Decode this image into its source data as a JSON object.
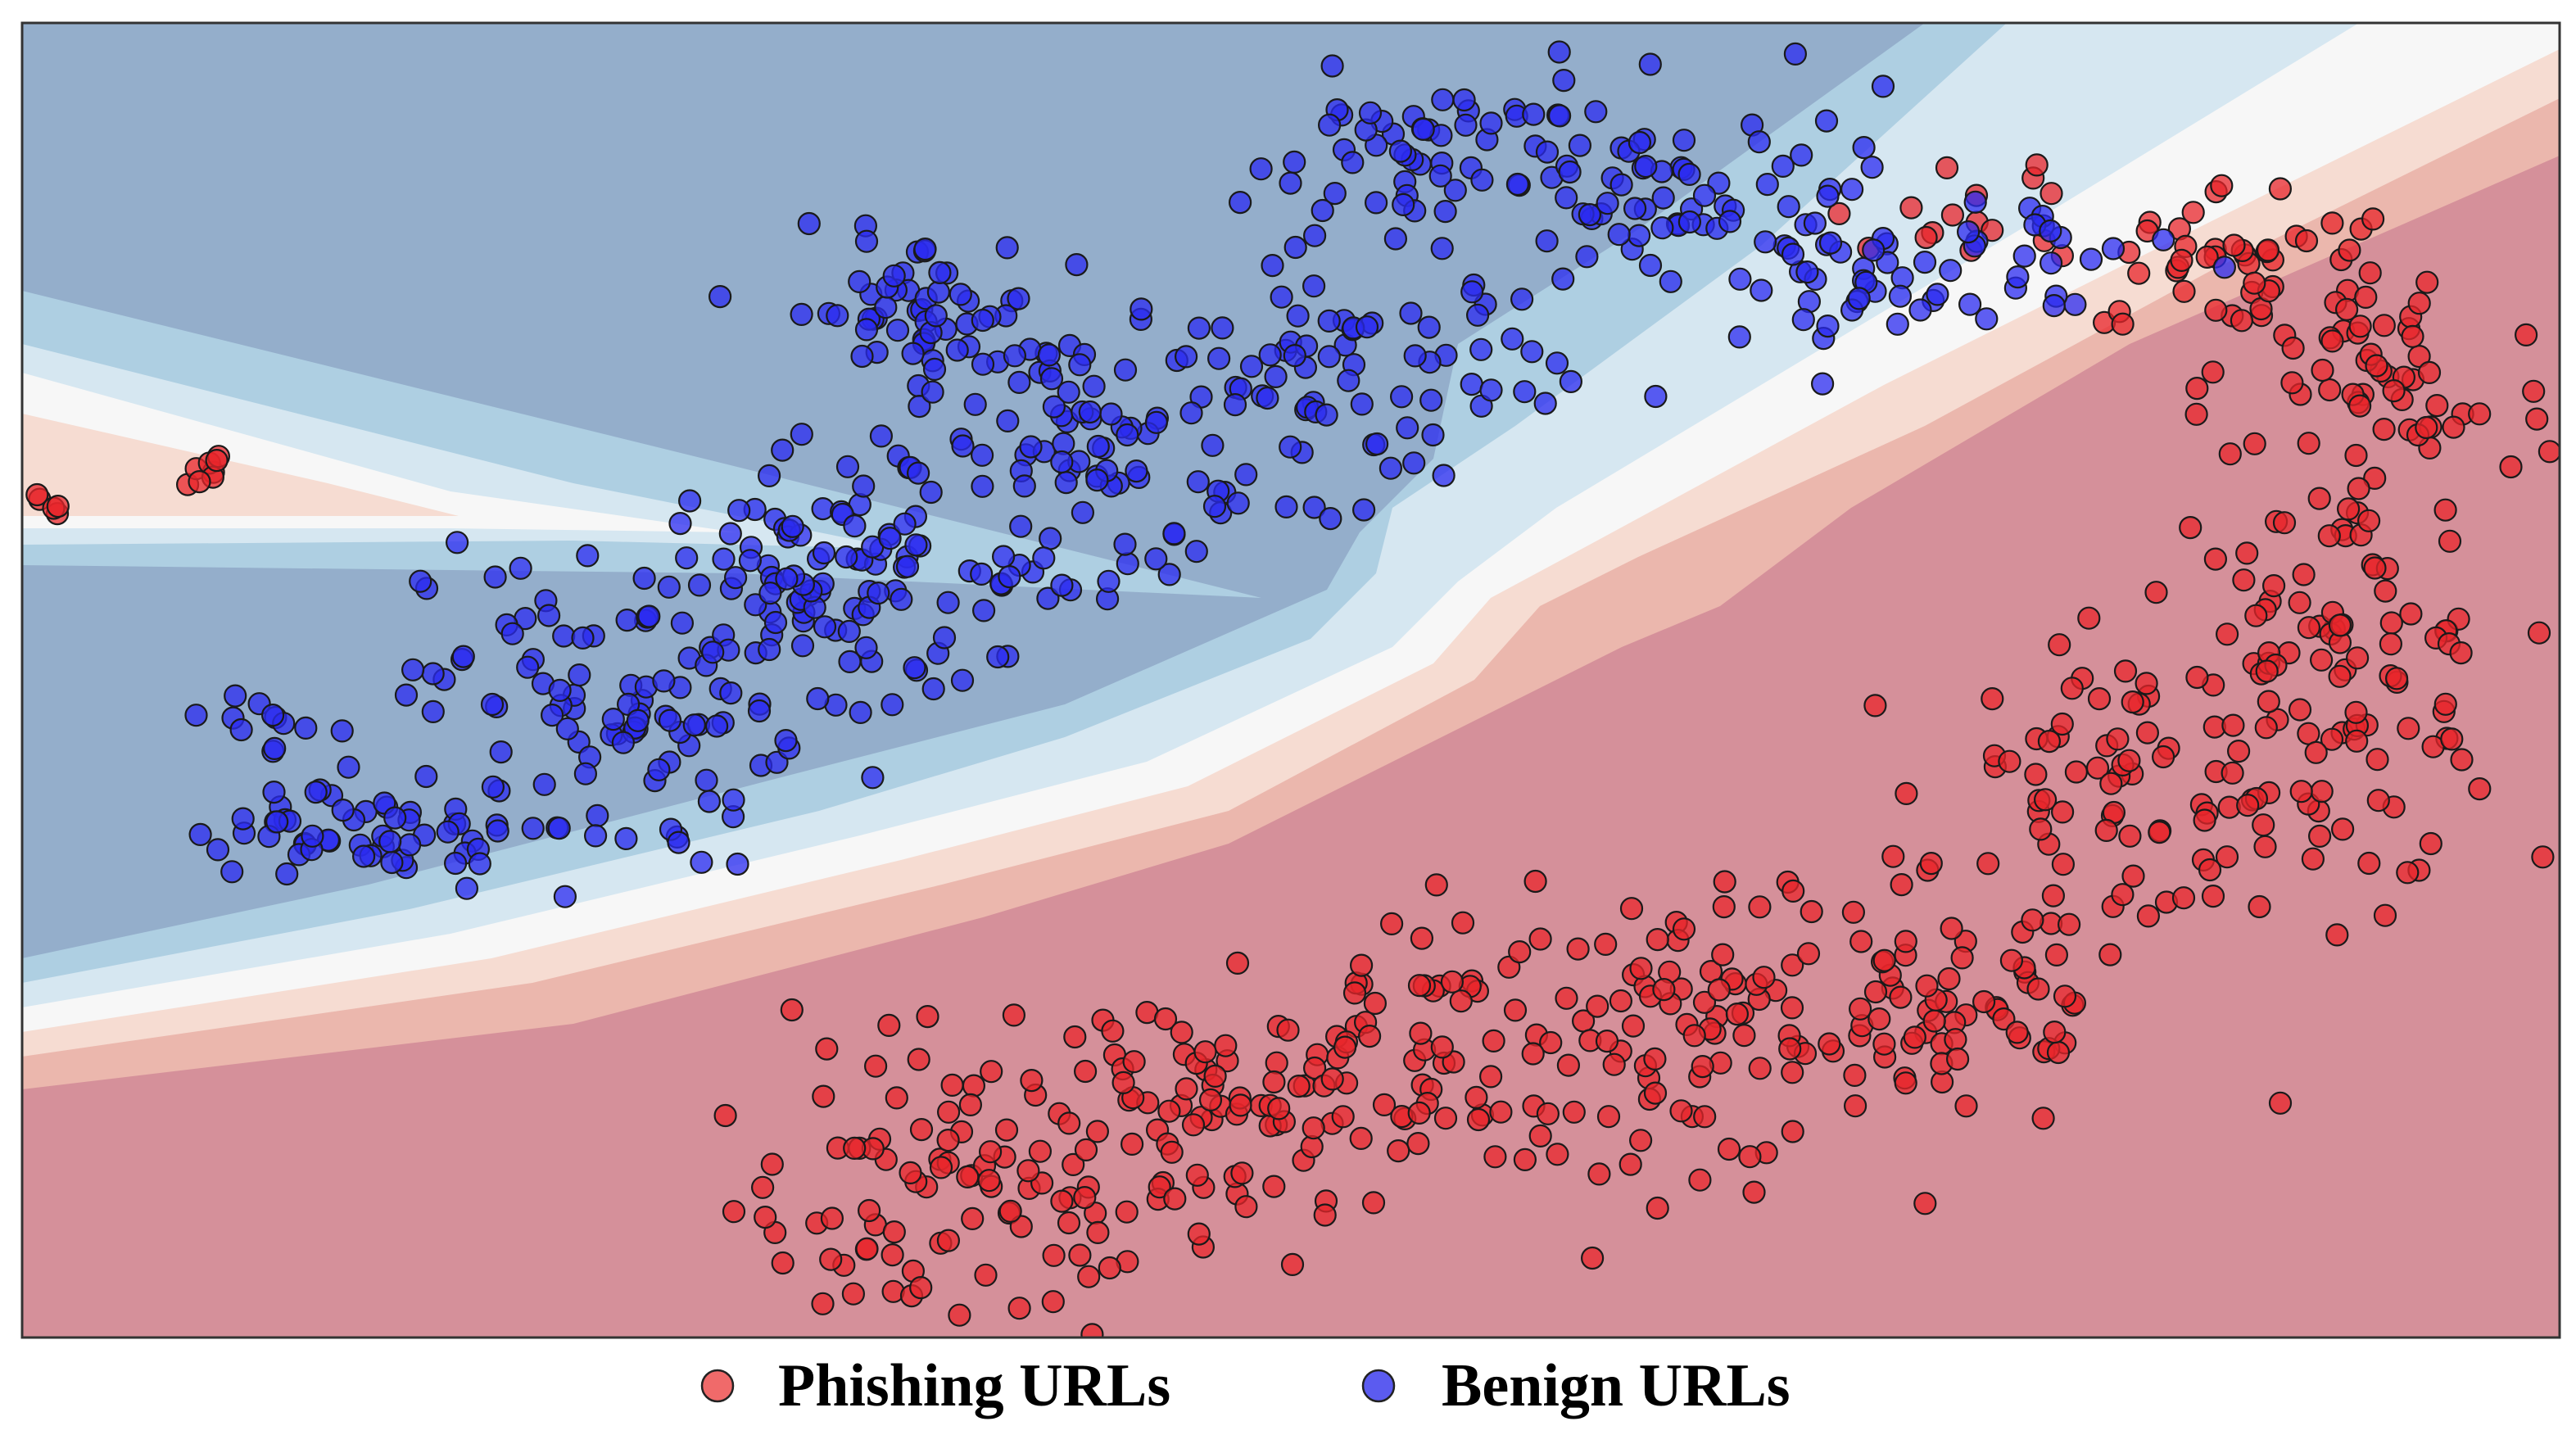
{
  "chart_data": {
    "type": "scatter",
    "title": "",
    "xlabel": "",
    "ylabel": "",
    "xlim": [
      0,
      100
    ],
    "ylim": [
      0,
      100
    ],
    "grid": false,
    "ticks": false,
    "background": "decision-boundary contour (blue region = benign, red region = phishing)",
    "legend": {
      "position": "bottom-center",
      "entries": [
        {
          "label": "Phishing URLs",
          "color": "#f06a6a"
        },
        {
          "label": "Benign URLs",
          "color": "#5b5bf0"
        }
      ]
    },
    "series": [
      {
        "name": "Phishing URLs",
        "color": "#e8252b",
        "clusters": [
          {
            "cx": 1,
            "cy": 63,
            "sx": 1.0,
            "sy": 0.8,
            "n": 8
          },
          {
            "cx": 7,
            "cy": 66,
            "sx": 0.6,
            "sy": 0.8,
            "n": 8
          },
          {
            "cx": 37,
            "cy": 10,
            "sx": 4.5,
            "sy": 5.5,
            "n": 90
          },
          {
            "cx": 46,
            "cy": 18,
            "sx": 4.5,
            "sy": 6.0,
            "n": 75
          },
          {
            "cx": 56,
            "cy": 22,
            "sx": 4.5,
            "sy": 5.5,
            "n": 80
          },
          {
            "cx": 66,
            "cy": 23,
            "sx": 4.0,
            "sy": 5.0,
            "n": 75
          },
          {
            "cx": 76,
            "cy": 25,
            "sx": 4.0,
            "sy": 5.0,
            "n": 70
          },
          {
            "cx": 83,
            "cy": 42,
            "sx": 3.5,
            "sy": 6.0,
            "n": 70
          },
          {
            "cx": 91,
            "cy": 50,
            "sx": 3.5,
            "sy": 8.0,
            "n": 110
          },
          {
            "cx": 93,
            "cy": 72,
            "sx": 3.5,
            "sy": 5.0,
            "n": 60
          },
          {
            "cx": 87,
            "cy": 82,
            "sx": 3.5,
            "sy": 3.0,
            "n": 45
          },
          {
            "cx": 77,
            "cy": 87,
            "sx": 2.5,
            "sy": 2.5,
            "n": 14
          }
        ]
      },
      {
        "name": "Benign URLs",
        "color": "#2b2bf0",
        "clusters": [
          {
            "cx": 10,
            "cy": 43,
            "sx": 1.2,
            "sy": 4.0,
            "n": 30
          },
          {
            "cx": 14,
            "cy": 38,
            "sx": 3.0,
            "sy": 2.0,
            "n": 40
          },
          {
            "cx": 23,
            "cy": 48,
            "sx": 3.5,
            "sy": 6.5,
            "n": 100
          },
          {
            "cx": 32,
            "cy": 57,
            "sx": 3.0,
            "sy": 5.5,
            "n": 90
          },
          {
            "cx": 35,
            "cy": 78,
            "sx": 2.5,
            "sy": 3.0,
            "n": 55
          },
          {
            "cx": 42,
            "cy": 68,
            "sx": 3.0,
            "sy": 4.5,
            "n": 70
          },
          {
            "cx": 52,
            "cy": 73,
            "sx": 4.5,
            "sy": 4.5,
            "n": 85
          },
          {
            "cx": 56,
            "cy": 90,
            "sx": 4.0,
            "sy": 3.0,
            "n": 60
          },
          {
            "cx": 66,
            "cy": 86,
            "sx": 4.5,
            "sy": 4.0,
            "n": 65
          },
          {
            "cx": 72,
            "cy": 80,
            "sx": 3.0,
            "sy": 3.5,
            "n": 35
          },
          {
            "cx": 80,
            "cy": 82,
            "sx": 3.0,
            "sy": 3.0,
            "n": 20
          },
          {
            "cx": 38,
            "cy": 58,
            "sx": 3.5,
            "sy": 1.5,
            "n": 25
          }
        ]
      }
    ]
  },
  "regions": {
    "benign_dark": "#94aecb",
    "benign_mid": "#aecfe2",
    "benign_light": "#d6e7f1",
    "neutral": "#f7f7f7",
    "phish_light": "#f6dcd2",
    "phish_mid": "#ebb7ad",
    "phish_dark": "#d5909a",
    "frame": "#333333"
  },
  "legend": {
    "phishing_label": "Phishing URLs",
    "benign_label": "Benign URLs"
  }
}
